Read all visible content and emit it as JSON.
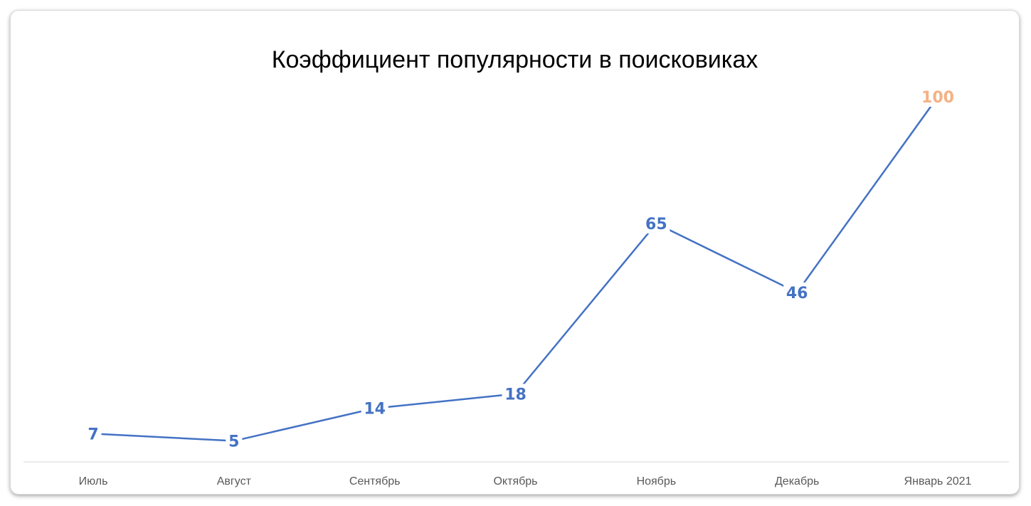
{
  "chart_data": {
    "type": "line",
    "title": "Коэффициент популярности в поисковиках",
    "categories": [
      "Июль",
      "Август",
      "Сентябрь",
      "Октябрь",
      "Ноябрь",
      "Декабрь",
      "Январь 2021"
    ],
    "series": [
      {
        "values": [
          7,
          5,
          14,
          18,
          65,
          46,
          100
        ],
        "color": "#4472C4",
        "highlight_color": "#F4B183",
        "highlight_index": 6
      }
    ],
    "ylim": [
      0,
      100
    ],
    "grid": false,
    "legend": "none",
    "data_labels": true
  }
}
